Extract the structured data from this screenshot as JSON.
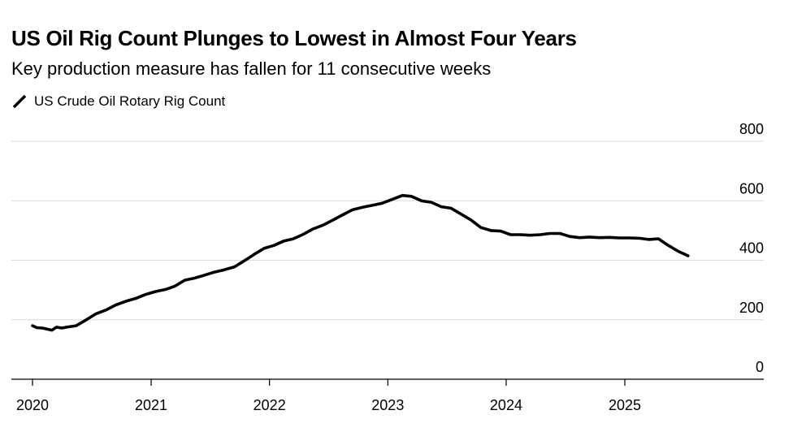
{
  "title": "US Oil Rig Count Plunges to Lowest in Almost Four Years",
  "subtitle": "Key production measure has fallen for 11 consecutive weeks",
  "colors": {
    "line": "#000000",
    "grid": "#d9d9d9",
    "axis": "#000000",
    "text": "#000000"
  },
  "chart_data": {
    "type": "line",
    "title": "US Oil Rig Count Plunges to Lowest in Almost Four Years",
    "subtitle": "Key production measure has fallen for 11 consecutive weeks",
    "xlabel": "",
    "ylabel": "",
    "ylim": [
      0,
      800
    ],
    "yticks": [
      0,
      200,
      400,
      600,
      800
    ],
    "ytick_labels": [
      "0",
      "200",
      "400",
      "600",
      "800"
    ],
    "xlim": [
      "2019-12-01",
      "2025-12-15"
    ],
    "xticks": [
      "2020-01-01",
      "2021-01-01",
      "2022-01-01",
      "2023-01-01",
      "2024-01-01",
      "2025-01-01"
    ],
    "xtick_labels": [
      "2020",
      "2021",
      "2022",
      "2023",
      "2024",
      "2025"
    ],
    "grid": true,
    "legend_position": "top-left",
    "series": [
      {
        "name": "US Crude Oil Rotary Rig Count",
        "x": [
          "2020-01-01",
          "2020-01-15",
          "2020-02-01",
          "2020-03-01",
          "2020-03-15",
          "2020-04-01",
          "2020-04-15",
          "2020-05-15",
          "2020-06-15",
          "2020-07-15",
          "2020-08-15",
          "2020-09-15",
          "2020-10-15",
          "2020-11-15",
          "2020-12-15",
          "2021-01-15",
          "2021-02-15",
          "2021-03-15",
          "2021-04-15",
          "2021-05-15",
          "2021-06-15",
          "2021-07-15",
          "2021-08-15",
          "2021-09-15",
          "2021-10-15",
          "2021-11-15",
          "2021-12-15",
          "2022-01-15",
          "2022-02-15",
          "2022-03-15",
          "2022-04-15",
          "2022-05-15",
          "2022-06-15",
          "2022-07-15",
          "2022-08-15",
          "2022-09-15",
          "2022-10-15",
          "2022-11-15",
          "2022-12-15",
          "2023-01-15",
          "2023-02-15",
          "2023-03-15",
          "2023-04-15",
          "2023-05-15",
          "2023-06-15",
          "2023-07-15",
          "2023-08-15",
          "2023-09-15",
          "2023-10-15",
          "2023-11-15",
          "2023-12-15",
          "2024-01-15",
          "2024-02-15",
          "2024-03-15",
          "2024-04-15",
          "2024-05-15",
          "2024-06-15",
          "2024-07-15",
          "2024-08-15",
          "2024-09-15",
          "2024-10-15",
          "2024-11-15",
          "2024-12-15",
          "2025-01-15",
          "2025-02-15",
          "2025-03-15",
          "2025-04-15",
          "2025-05-15",
          "2025-06-15",
          "2025-07-15"
        ],
        "values": [
          180,
          173,
          172,
          165,
          175,
          172,
          175,
          180,
          200,
          220,
          233,
          250,
          262,
          272,
          285,
          295,
          302,
          313,
          333,
          340,
          350,
          360,
          368,
          378,
          398,
          420,
          440,
          450,
          465,
          472,
          487,
          505,
          518,
          535,
          553,
          570,
          578,
          585,
          592,
          605,
          618,
          615,
          600,
          595,
          580,
          575,
          555,
          535,
          510,
          500,
          498,
          486,
          486,
          484,
          486,
          490,
          490,
          480,
          476,
          478,
          476,
          477,
          475,
          475,
          474,
          470,
          472,
          450,
          430,
          415
        ]
      }
    ]
  }
}
